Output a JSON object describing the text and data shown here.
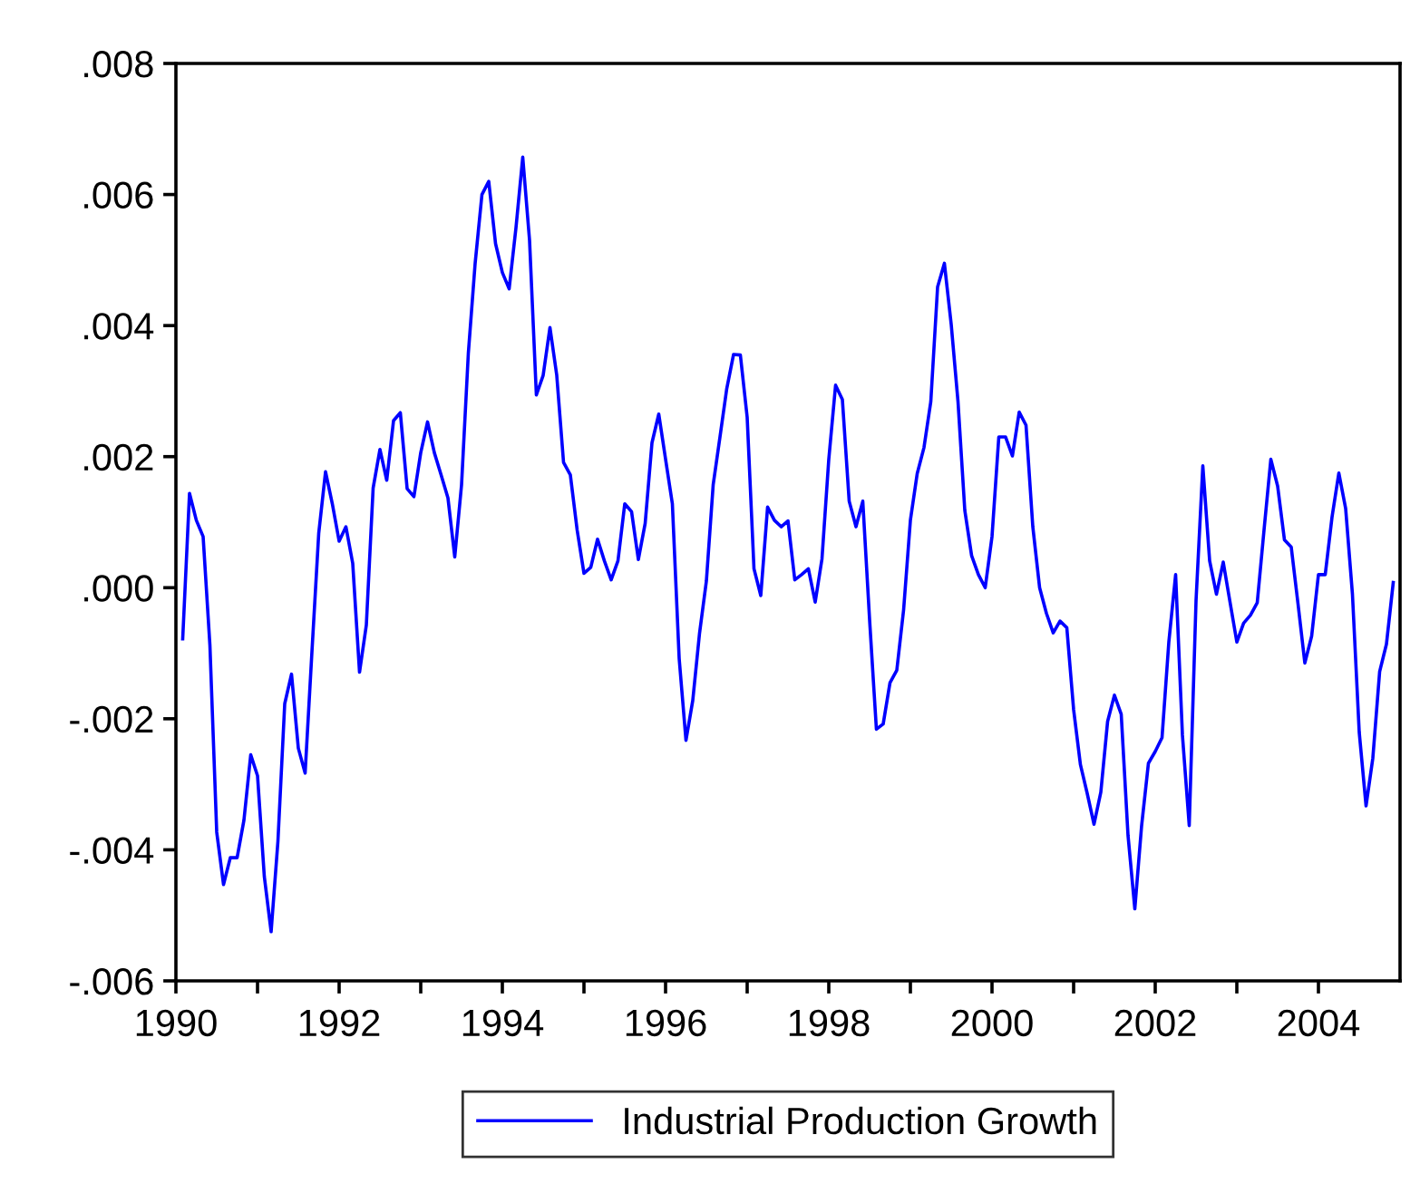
{
  "chart_data": {
    "type": "line",
    "x": [
      "1990-02",
      "1990-03",
      "1990-04",
      "1990-05",
      "1990-06",
      "1990-07",
      "1990-08",
      "1990-09",
      "1990-10",
      "1990-11",
      "1990-12",
      "1991-01",
      "1991-02",
      "1991-03",
      "1991-04",
      "1991-05",
      "1991-06",
      "1991-07",
      "1991-08",
      "1991-09",
      "1991-10",
      "1991-11",
      "1991-12",
      "1992-01",
      "1992-02",
      "1992-03",
      "1992-04",
      "1992-05",
      "1992-06",
      "1992-07",
      "1992-08",
      "1992-09",
      "1992-10",
      "1992-11",
      "1992-12",
      "1993-01",
      "1993-02",
      "1993-03",
      "1993-04",
      "1993-05",
      "1993-06",
      "1993-07",
      "1993-08",
      "1993-09",
      "1993-10",
      "1993-11",
      "1993-12",
      "1994-01",
      "1994-02",
      "1994-03",
      "1994-04",
      "1994-05",
      "1994-06",
      "1994-07",
      "1994-08",
      "1994-09",
      "1994-10",
      "1994-11",
      "1994-12",
      "1995-01",
      "1995-02",
      "1995-03",
      "1995-04",
      "1995-05",
      "1995-06",
      "1995-07",
      "1995-08",
      "1995-09",
      "1995-10",
      "1995-11",
      "1995-12",
      "1996-01",
      "1996-02",
      "1996-03",
      "1996-04",
      "1996-05",
      "1996-06",
      "1996-07",
      "1996-08",
      "1996-09",
      "1996-10",
      "1996-11",
      "1996-12",
      "1997-01",
      "1997-02",
      "1997-03",
      "1997-04",
      "1997-05",
      "1997-06",
      "1997-07",
      "1997-08",
      "1997-09",
      "1997-10",
      "1997-11",
      "1997-12",
      "1998-01",
      "1998-02",
      "1998-03",
      "1998-04",
      "1998-05",
      "1998-06",
      "1998-07",
      "1998-08",
      "1998-09",
      "1998-10",
      "1998-11",
      "1998-12",
      "1999-01",
      "1999-02",
      "1999-03",
      "1999-04",
      "1999-05",
      "1999-06",
      "1999-07",
      "1999-08",
      "1999-09",
      "1999-10",
      "1999-11",
      "1999-12",
      "2000-01",
      "2000-02",
      "2000-03",
      "2000-04",
      "2000-05",
      "2000-06",
      "2000-07",
      "2000-08",
      "2000-09",
      "2000-10",
      "2000-11",
      "2000-12",
      "2001-01",
      "2001-02",
      "2001-03",
      "2001-04",
      "2001-05",
      "2001-06",
      "2001-07",
      "2001-08",
      "2001-09",
      "2001-10",
      "2001-11",
      "2001-12",
      "2002-01",
      "2002-02",
      "2002-03",
      "2002-04",
      "2002-05",
      "2002-06",
      "2002-07",
      "2002-08",
      "2002-09",
      "2002-10",
      "2002-11",
      "2002-12",
      "2003-01",
      "2003-02",
      "2003-03",
      "2003-04",
      "2003-05",
      "2003-06",
      "2003-07",
      "2003-08",
      "2003-09",
      "2003-10",
      "2003-11",
      "2003-12",
      "2004-01",
      "2004-02",
      "2004-03",
      "2004-04",
      "2004-05",
      "2004-06",
      "2004-07",
      "2004-08",
      "2004-09",
      "2004-10",
      "2004-11",
      "2004-12"
    ],
    "series": [
      {
        "name": "Industrial Production Growth",
        "color": "#0000ff",
        "values": [
          -0.00078,
          0.00144,
          0.00103,
          0.00078,
          -0.00088,
          -0.00373,
          -0.00453,
          -0.00412,
          -0.00412,
          -0.00355,
          -0.00255,
          -0.00287,
          -0.00441,
          -0.00525,
          -0.00387,
          -0.00177,
          -0.00132,
          -0.00245,
          -0.00283,
          -0.00098,
          0.00083,
          0.00177,
          0.00128,
          0.00071,
          0.00093,
          0.00037,
          -0.00129,
          -0.00057,
          0.00152,
          0.00211,
          0.00164,
          0.00255,
          0.00267,
          0.00151,
          0.00139,
          0.00206,
          0.00253,
          0.00206,
          0.00172,
          0.00137,
          0.00047,
          0.00157,
          0.00358,
          0.00495,
          0.006,
          0.0062,
          0.00525,
          0.00481,
          0.00456,
          0.00549,
          0.00657,
          0.0053,
          0.00294,
          0.00324,
          0.00397,
          0.00324,
          0.00191,
          0.00172,
          0.00088,
          0.00022,
          0.00031,
          0.00074,
          0.00041,
          0.00012,
          0.00041,
          0.00128,
          0.00116,
          0.00043,
          0.00098,
          0.00221,
          0.00265,
          0.00196,
          0.00128,
          -0.00108,
          -0.00233,
          -0.00172,
          -0.00069,
          0.0001,
          0.00157,
          0.0023,
          0.00304,
          0.00356,
          0.00355,
          0.0026,
          0.00029,
          -0.00012,
          0.00123,
          0.00103,
          0.00093,
          0.00102,
          0.00012,
          0.0002,
          0.00029,
          -0.00022,
          0.00044,
          0.00196,
          0.00309,
          0.00287,
          0.00132,
          0.00093,
          0.00132,
          -0.00049,
          -0.00216,
          -0.00208,
          -0.00145,
          -0.00126,
          -0.00034,
          0.00103,
          0.00174,
          0.00214,
          0.00284,
          0.00459,
          0.00495,
          0.00402,
          0.00284,
          0.00118,
          0.00049,
          0.0002,
          0.0,
          0.00078,
          0.0023,
          0.0023,
          0.00201,
          0.00268,
          0.00248,
          0.00093,
          0.0,
          -0.00039,
          -0.00069,
          -0.00051,
          -0.00061,
          -0.00186,
          -0.0027,
          -0.00314,
          -0.00361,
          -0.00312,
          -0.00204,
          -0.00164,
          -0.00193,
          -0.00378,
          -0.0049,
          -0.00363,
          -0.00268,
          -0.0025,
          -0.00229,
          -0.00083,
          0.0002,
          -0.00225,
          -0.00363,
          -0.0002,
          0.00186,
          0.00041,
          -0.0001,
          0.00039,
          -0.00022,
          -0.00083,
          -0.00054,
          -0.00042,
          -0.00023,
          0.00088,
          0.00196,
          0.00155,
          0.00073,
          0.00062,
          -0.00025,
          -0.00115,
          -0.00074,
          0.0002,
          0.0002,
          0.00108,
          0.00175,
          0.00121,
          -0.0001,
          -0.00221,
          -0.00333,
          -0.0026,
          -0.00128,
          -0.00086,
          8e-05
        ]
      }
    ],
    "xlim": [
      "1990-01",
      "2005-01"
    ],
    "xticks": [
      {
        "value": "1990-01",
        "label": "1990"
      },
      {
        "value": "1991-01",
        "label": null
      },
      {
        "value": "1992-01",
        "label": "1992"
      },
      {
        "value": "1993-01",
        "label": null
      },
      {
        "value": "1994-01",
        "label": "1994"
      },
      {
        "value": "1995-01",
        "label": null
      },
      {
        "value": "1996-01",
        "label": "1996"
      },
      {
        "value": "1997-01",
        "label": null
      },
      {
        "value": "1998-01",
        "label": "1998"
      },
      {
        "value": "1999-01",
        "label": null
      },
      {
        "value": "2000-01",
        "label": "2000"
      },
      {
        "value": "2001-01",
        "label": null
      },
      {
        "value": "2002-01",
        "label": "2002"
      },
      {
        "value": "2003-01",
        "label": null
      },
      {
        "value": "2004-01",
        "label": "2004"
      }
    ],
    "ylim": [
      -0.006,
      0.008
    ],
    "yticks": [
      {
        "value": -0.006,
        "label": "-.006"
      },
      {
        "value": -0.004,
        "label": "-.004"
      },
      {
        "value": -0.002,
        "label": "-.002"
      },
      {
        "value": 0,
        "label": ".000"
      },
      {
        "value": 0.002,
        "label": ".002"
      },
      {
        "value": 0.004,
        "label": ".004"
      },
      {
        "value": 0.006,
        "label": ".006"
      },
      {
        "value": 0.008,
        "label": ".008"
      }
    ],
    "grid": false,
    "legend": "bottom",
    "line_style": "solid",
    "marker": "none"
  }
}
